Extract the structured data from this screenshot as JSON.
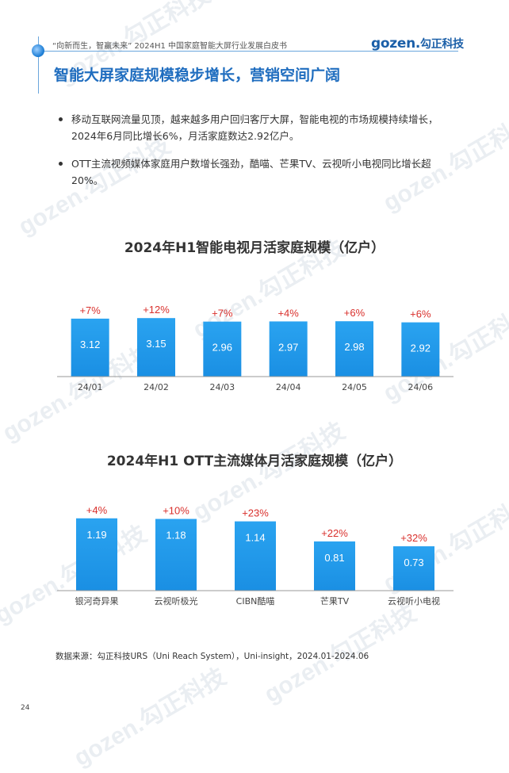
{
  "header": {
    "doc_title": "“向新而生，智赢未来” 2024H1 中国家庭智能大屏行业发展白皮书",
    "logo_text": "gozen.",
    "logo_cn": "勾正科技",
    "accent_color": "#1f6dbf"
  },
  "page_title": "智能大屏家庭规模稳步增长，营销空间广阔",
  "bullets": [
    "移动互联网流量见顶，越来越多用户回归客厅大屏，智能电视的市场规模持续增长，2024年6月同比增长6%，月活家庭数达2.92亿户。",
    "OTT主流视频媒体家庭用户数增长强劲，酷喵、芒果TV、云视听小电视同比增长超20%。"
  ],
  "chart_data": [
    {
      "type": "bar",
      "title": "2024年H1智能电视月活家庭规模（亿户）",
      "categories": [
        "24/01",
        "24/02",
        "24/03",
        "24/04",
        "24/05",
        "24/06"
      ],
      "values": [
        3.12,
        3.15,
        2.96,
        2.97,
        2.98,
        2.92
      ],
      "value_labels": [
        "3.12",
        "3.15",
        "2.96",
        "2.97",
        "2.98",
        "2.92"
      ],
      "annotations": [
        "+7%",
        "+12%",
        "+7%",
        "+4%",
        "+6%",
        "+6%"
      ],
      "bar_color": "#1a8fe3",
      "annotation_color": "#d9302c",
      "grid": false
    },
    {
      "type": "bar",
      "title": "2024年H1 OTT主流媒体月活家庭规模（亿户）",
      "categories": [
        "银河奇异果",
        "云视听极光",
        "CIBN酷喵",
        "芒果TV",
        "云视听小电视"
      ],
      "values": [
        1.19,
        1.18,
        1.14,
        0.81,
        0.73
      ],
      "value_labels": [
        "1.19",
        "1.18",
        "1.14",
        "0.81",
        "0.73"
      ],
      "annotations": [
        "+4%",
        "+10%",
        "+23%",
        "+22%",
        "+32%"
      ],
      "bar_color": "#1a8fe3",
      "annotation_color": "#d9302c",
      "grid": false
    }
  ],
  "source": "数据来源：勾正科技URS（Uni Reach System），Uni-insight，2024.01-2024.06",
  "page_number": "24",
  "watermark_text": "gozen.勾正科技"
}
